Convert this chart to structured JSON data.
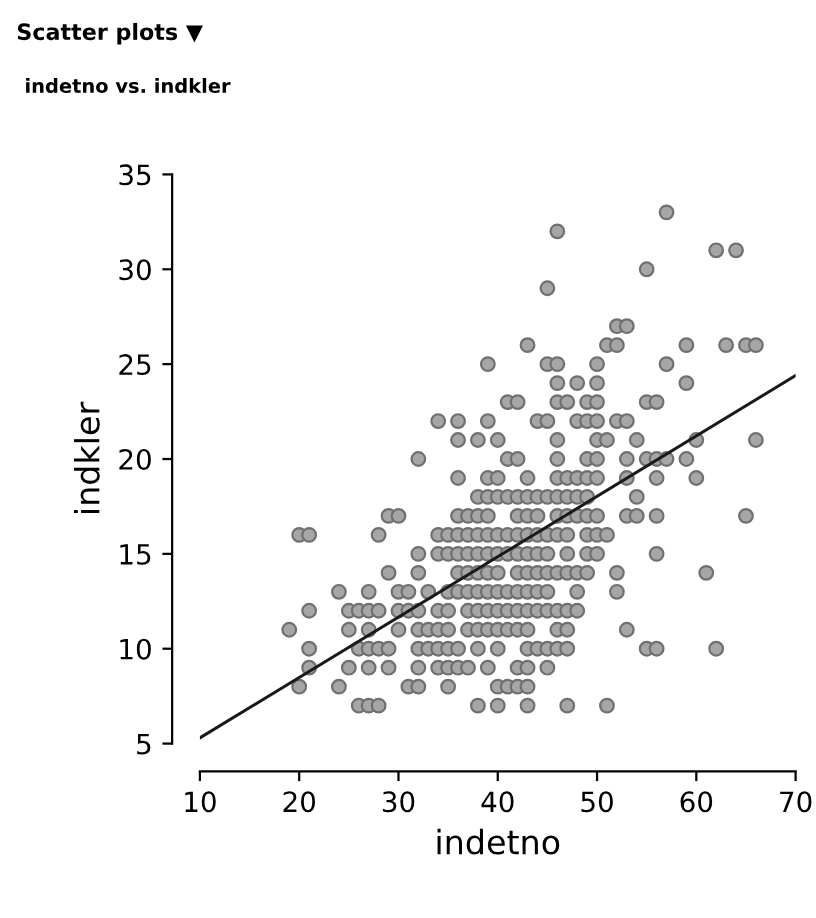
{
  "chart_data": {
    "type": "scatter",
    "title": "Scatter plots ▼",
    "subtitle": "indetno vs. indkler",
    "xlabel": "indetno",
    "ylabel": "indkler",
    "xlim": [
      10,
      70
    ],
    "ylim": [
      5,
      35
    ],
    "xticks": [
      10,
      20,
      30,
      40,
      50,
      60,
      70
    ],
    "yticks": [
      5,
      10,
      15,
      20,
      25,
      30,
      35
    ],
    "grid": false,
    "marker": "circle",
    "series": [
      {
        "color": "#a6a6a6",
        "x": [
          57,
          46,
          62,
          64,
          55,
          45,
          52,
          53,
          43,
          51,
          52,
          59,
          63,
          65,
          66,
          39,
          45,
          46,
          50,
          57,
          46,
          48,
          50,
          59,
          41,
          42,
          46,
          47,
          49,
          50,
          55,
          56,
          34,
          36,
          39,
          44,
          45,
          48,
          49,
          50,
          52,
          53,
          36,
          38,
          40,
          46,
          50,
          51,
          54,
          60,
          66,
          32,
          41,
          42,
          46,
          49,
          50,
          53,
          55,
          56,
          57,
          59,
          36,
          39,
          40,
          43,
          46,
          47,
          48,
          49,
          50,
          53,
          56,
          60,
          38,
          39,
          40,
          41,
          42,
          43,
          44,
          45,
          46,
          47,
          48,
          49,
          54,
          29,
          30,
          36,
          37,
          38,
          39,
          42,
          43,
          44,
          46,
          47,
          48,
          49,
          50,
          53,
          54,
          56,
          65,
          20,
          21,
          28,
          34,
          35,
          36,
          37,
          38,
          39,
          40,
          41,
          42,
          43,
          44,
          45,
          46,
          47,
          49,
          50,
          51,
          32,
          34,
          35,
          36,
          37,
          38,
          39,
          40,
          41,
          42,
          43,
          44,
          45,
          47,
          49,
          50,
          56,
          29,
          32,
          36,
          37,
          38,
          39,
          40,
          42,
          43,
          44,
          45,
          46,
          47,
          48,
          49,
          52,
          61,
          24,
          27,
          30,
          31,
          33,
          35,
          36,
          37,
          38,
          39,
          40,
          41,
          42,
          43,
          44,
          45,
          48,
          52,
          21,
          25,
          26,
          27,
          28,
          30,
          31,
          32,
          34,
          35,
          37,
          38,
          39,
          40,
          41,
          42,
          43,
          44,
          45,
          46,
          47,
          48,
          19,
          25,
          27,
          30,
          32,
          33,
          34,
          35,
          37,
          38,
          39,
          40,
          41,
          42,
          43,
          46,
          47,
          53,
          21,
          26,
          27,
          28,
          29,
          32,
          33,
          34,
          35,
          36,
          38,
          40,
          43,
          44,
          45,
          46,
          47,
          55,
          56,
          62,
          21,
          25,
          27,
          29,
          32,
          34,
          35,
          36,
          37,
          39,
          42,
          43,
          45,
          20,
          24,
          31,
          32,
          35,
          40,
          41,
          42,
          43,
          26,
          27,
          28,
          38,
          40,
          43,
          47,
          51
        ],
        "values": [
          33,
          32,
          31,
          31,
          30,
          29,
          27,
          27,
          26,
          26,
          26,
          26,
          26,
          26,
          26,
          25,
          25,
          25,
          25,
          25,
          24,
          24,
          24,
          24,
          23,
          23,
          23,
          23,
          23,
          23,
          23,
          23,
          22,
          22,
          22,
          22,
          22,
          22,
          22,
          22,
          22,
          22,
          21,
          21,
          21,
          21,
          21,
          21,
          21,
          21,
          21,
          20,
          20,
          20,
          20,
          20,
          20,
          20,
          20,
          20,
          20,
          20,
          19,
          19,
          19,
          19,
          19,
          19,
          19,
          19,
          19,
          19,
          19,
          19,
          18,
          18,
          18,
          18,
          18,
          18,
          18,
          18,
          18,
          18,
          18,
          18,
          18,
          17,
          17,
          17,
          17,
          17,
          17,
          17,
          17,
          17,
          17,
          17,
          17,
          17,
          17,
          17,
          17,
          17,
          17,
          16,
          16,
          16,
          16,
          16,
          16,
          16,
          16,
          16,
          16,
          16,
          16,
          16,
          16,
          16,
          16,
          16,
          16,
          16,
          16,
          15,
          15,
          15,
          15,
          15,
          15,
          15,
          15,
          15,
          15,
          15,
          15,
          15,
          15,
          15,
          15,
          15,
          14,
          14,
          14,
          14,
          14,
          14,
          14,
          14,
          14,
          14,
          14,
          14,
          14,
          14,
          14,
          14,
          14,
          13,
          13,
          13,
          13,
          13,
          13,
          13,
          13,
          13,
          13,
          13,
          13,
          13,
          13,
          13,
          13,
          13,
          13,
          12,
          12,
          12,
          12,
          12,
          12,
          12,
          12,
          12,
          12,
          12,
          12,
          12,
          12,
          12,
          12,
          12,
          12,
          12,
          12,
          12,
          12,
          11,
          11,
          11,
          11,
          11,
          11,
          11,
          11,
          11,
          11,
          11,
          11,
          11,
          11,
          11,
          11,
          11,
          11,
          10,
          10,
          10,
          10,
          10,
          10,
          10,
          10,
          10,
          10,
          10,
          10,
          10,
          10,
          10,
          10,
          10,
          10,
          10,
          10,
          9,
          9,
          9,
          9,
          9,
          9,
          9,
          9,
          9,
          9,
          9,
          9,
          9,
          8,
          8,
          8,
          8,
          8,
          8,
          8,
          8,
          8,
          7,
          7,
          7,
          7,
          7,
          7,
          7,
          7
        ]
      },
      {
        "type": "line",
        "color": "#1a1a1a",
        "marker": "none",
        "line_style": "solid",
        "x": [
          10,
          70
        ],
        "values": [
          5.3,
          24.4
        ]
      }
    ]
  }
}
